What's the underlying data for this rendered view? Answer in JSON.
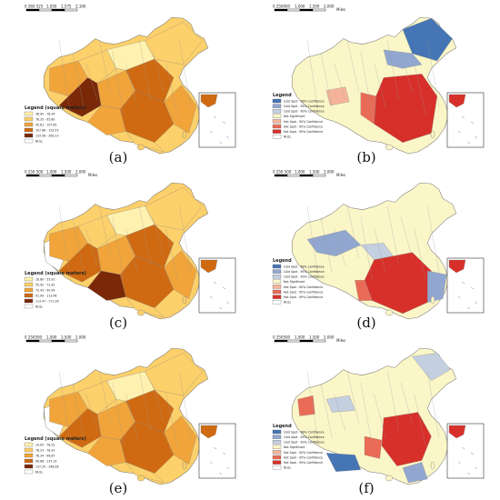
{
  "panels": [
    {
      "id": "a",
      "label": "(a)",
      "type": "choropleth",
      "scale_ticks": [
        "0 260 525",
        "1,050",
        "1,575",
        "2,100"
      ],
      "scale_unit": "",
      "legend_title": "Legend (square meters)",
      "legend": [
        {
          "label": "38.00 - 78.34",
          "color": "#fff2b0"
        },
        {
          "label": "78.35 - 95.80",
          "color": "#fcd06a"
        },
        {
          "label": "95.81 - 107.65",
          "color": "#f1a43a"
        },
        {
          "label": "107.66 - 133.55",
          "color": "#cf6a12"
        },
        {
          "label": "133.56 - 269.23",
          "color": "#7a2808"
        },
        {
          "label": "NULL",
          "color": "#ffffff"
        }
      ]
    },
    {
      "id": "b",
      "label": "(b)",
      "type": "hotspot",
      "scale_ticks": [
        "0 250000",
        "1,000",
        "1,500",
        "2,000"
      ],
      "scale_unit": "Miles",
      "legend_title": "Legend",
      "legend": [
        {
          "label": "Cold Spot - 99% Confidence",
          "color": "#4575b4"
        },
        {
          "label": "Cold Spot - 95% Confidence",
          "color": "#91a7cf"
        },
        {
          "label": "Cold Spot - 90% Confidence",
          "color": "#c4cfe0"
        },
        {
          "label": "Not Significant",
          "color": "#fbf6c8"
        },
        {
          "label": "Hot Spot - 90% Confidence",
          "color": "#f5b49a"
        },
        {
          "label": "Hot Spot - 95% Confidence",
          "color": "#ea6b55"
        },
        {
          "label": "Hot Spot - 99% Confidence",
          "color": "#d7302a"
        },
        {
          "label": "NULL",
          "color": "#ffffff"
        }
      ]
    },
    {
      "id": "c",
      "label": "(c)",
      "type": "choropleth",
      "scale_ticks": [
        "0 250 500",
        "1,000",
        "1,500",
        "2,000"
      ],
      "scale_unit": "Miles",
      "legend_title": "Legend (square meters)",
      "legend": [
        {
          "label": "16.80 - 55.91",
          "color": "#fff2b0"
        },
        {
          "label": "55.92 - 72.42",
          "color": "#fcd06a"
        },
        {
          "label": "72.43 - 90.99",
          "color": "#f1a43a"
        },
        {
          "label": "91.00 - 113.46",
          "color": "#cf6a12"
        },
        {
          "label": "113.47 - 171.26",
          "color": "#7a2808"
        },
        {
          "label": "NULL",
          "color": "#ffffff"
        }
      ]
    },
    {
      "id": "d",
      "label": "(d)",
      "type": "hotspot",
      "scale_ticks": [
        "0 250 500",
        "1,000",
        "1,500",
        "2,000"
      ],
      "scale_unit": "Miles",
      "legend_title": "Legend",
      "legend": [
        {
          "label": "Cold Spot - 99% Confidence",
          "color": "#4575b4"
        },
        {
          "label": "Cold Spot - 95% Confidence",
          "color": "#91a7cf"
        },
        {
          "label": "Cold Spot - 90% Confidence",
          "color": "#c4cfe0"
        },
        {
          "label": "Not Significant",
          "color": "#fbf6c8"
        },
        {
          "label": "Hot Spot - 90% Confidence",
          "color": "#f5b49a"
        },
        {
          "label": "Hot Spot - 95% Confidence",
          "color": "#ea6b55"
        },
        {
          "label": "Hot Spot - 99% Confidence",
          "color": "#d7302a"
        },
        {
          "label": "NULL",
          "color": "#ffffff"
        }
      ]
    },
    {
      "id": "e",
      "label": "(e)",
      "type": "choropleth",
      "scale_ticks": [
        "0 250500",
        "1,000",
        "1,500",
        "2,000"
      ],
      "scale_unit": "",
      "legend_title": "Legend (square meters)",
      "legend": [
        {
          "label": "10.00 - 78.22",
          "color": "#fff2b0"
        },
        {
          "label": "78.23 - 78.33",
          "color": "#fcd06a"
        },
        {
          "label": "78.34 - 96.87",
          "color": "#f1a43a"
        },
        {
          "label": "96.88 - 137.19",
          "color": "#cf6a12"
        },
        {
          "label": "137.20 - 248.08",
          "color": "#7a2808"
        },
        {
          "label": "NULL",
          "color": "#ffffff"
        }
      ]
    },
    {
      "id": "f",
      "label": "(f)",
      "type": "hotspot",
      "scale_ticks": [
        "0 250500",
        "1,000",
        "1,500",
        "2,000"
      ],
      "scale_unit": "Miles",
      "legend_title": "Legend",
      "legend": [
        {
          "label": "Cold Spot - 99% Confidence",
          "color": "#4575b4"
        },
        {
          "label": "Cold Spot - 95% Confidence",
          "color": "#91a7cf"
        },
        {
          "label": "Cold Spot - 90% Confidence",
          "color": "#c4cfe0"
        },
        {
          "label": "Not Significant",
          "color": "#fbf6c8"
        },
        {
          "label": "Hot Spot - 90% Confidence",
          "color": "#f5b49a"
        },
        {
          "label": "Hot Spot - 95% Confidence",
          "color": "#ea6b55"
        },
        {
          "label": "Hot Spot - 99% Confidence",
          "color": "#d7302a"
        },
        {
          "label": "NULL",
          "color": "#ffffff"
        }
      ]
    }
  ]
}
